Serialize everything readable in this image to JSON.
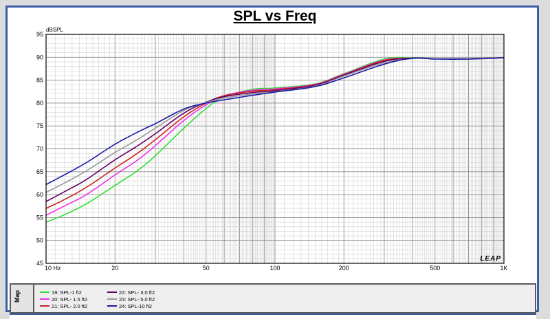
{
  "chart_data": {
    "type": "line",
    "title": "SPL vs Freq",
    "ylabel": "dBSPL",
    "xlabel": "",
    "x_scale": "log",
    "xlim": [
      10,
      1000
    ],
    "ylim": [
      45,
      95
    ],
    "grid": true,
    "x_tick_labels": [
      {
        "value": 10,
        "label": "10  Hz"
      },
      {
        "value": 20,
        "label": "20"
      },
      {
        "value": 50,
        "label": "50"
      },
      {
        "value": 100,
        "label": "100"
      },
      {
        "value": 200,
        "label": "200"
      },
      {
        "value": 500,
        "label": "500"
      },
      {
        "value": 1000,
        "label": "1K"
      }
    ],
    "y_ticks": [
      45,
      50,
      55,
      60,
      65,
      70,
      75,
      80,
      85,
      90,
      95
    ],
    "watermark": "LEAP",
    "legend_placement": "bottom",
    "series": [
      {
        "name": "19: SPL-1 ft2",
        "color": "#33dd33",
        "x": [
          10,
          12,
          15,
          20,
          25,
          30,
          40,
          50,
          60,
          80,
          100,
          150,
          200,
          300,
          400,
          500,
          700,
          1000
        ],
        "y": [
          54,
          55.6,
          58,
          62,
          65.2,
          68.5,
          74.5,
          78.8,
          81.4,
          83,
          83.3,
          84.2,
          86.4,
          89.6,
          89.9,
          89.7,
          89.7,
          89.9
        ]
      },
      {
        "name": "20: SPL- 1.5 ft2",
        "color": "#ee33ee",
        "x": [
          10,
          12,
          15,
          20,
          25,
          30,
          40,
          50,
          60,
          80,
          100,
          150,
          200,
          300,
          400,
          500,
          700,
          1000
        ],
        "y": [
          55.5,
          57.5,
          60,
          64.3,
          67.5,
          70.7,
          76.2,
          79.6,
          81.6,
          82.8,
          83.1,
          84.1,
          86.3,
          89.4,
          89.8,
          89.7,
          89.7,
          89.9
        ]
      },
      {
        "name": "21: SPL- 2.0 ft2",
        "color": "#cc2222",
        "x": [
          10,
          12,
          15,
          20,
          25,
          30,
          40,
          50,
          60,
          80,
          100,
          150,
          200,
          300,
          400,
          500,
          700,
          1000
        ],
        "y": [
          57,
          58.9,
          61.6,
          65.8,
          69,
          72,
          77,
          80,
          81.6,
          82.6,
          82.9,
          84,
          86.2,
          89.3,
          89.8,
          89.7,
          89.7,
          89.9
        ]
      },
      {
        "name": "22: SPL- 3.0 ft2",
        "color": "#660066",
        "x": [
          10,
          12,
          15,
          20,
          25,
          30,
          40,
          50,
          60,
          80,
          100,
          150,
          200,
          300,
          400,
          500,
          700,
          1000
        ],
        "y": [
          58.5,
          60.6,
          63.3,
          67.6,
          70.6,
          73.3,
          77.8,
          80.2,
          81.4,
          82.3,
          82.7,
          83.9,
          86.1,
          89.1,
          89.8,
          89.7,
          89.7,
          89.9
        ]
      },
      {
        "name": "23: SPL- 5.0 ft2",
        "color": "#999999",
        "x": [
          10,
          12,
          15,
          20,
          25,
          30,
          40,
          50,
          60,
          80,
          100,
          150,
          200,
          300,
          400,
          500,
          700,
          1000
        ],
        "y": [
          60.5,
          62.5,
          65.2,
          69.2,
          72,
          74.5,
          78.4,
          80.1,
          81.1,
          82,
          82.5,
          83.7,
          85.9,
          88.8,
          89.7,
          89.7,
          89.7,
          89.9
        ]
      },
      {
        "name": "24: SPL-10 ft2",
        "color": "#1a1aaa",
        "x": [
          10,
          12,
          15,
          20,
          25,
          30,
          40,
          50,
          60,
          80,
          100,
          150,
          200,
          300,
          400,
          500,
          700,
          1000
        ],
        "y": [
          62.2,
          64.3,
          67,
          71,
          73.6,
          75.5,
          78.7,
          80,
          80.7,
          81.7,
          82.4,
          83.6,
          85.5,
          88.5,
          89.8,
          89.6,
          89.6,
          89.9
        ]
      }
    ]
  },
  "panel": {
    "map_label": "Map"
  }
}
